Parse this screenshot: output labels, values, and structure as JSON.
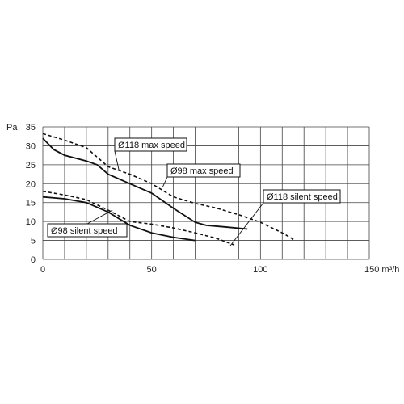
{
  "chart_data": {
    "type": "line",
    "title": "",
    "xlabel": "m³/h",
    "ylabel": "Pa",
    "xlim": [
      0,
      150
    ],
    "ylim": [
      0,
      35
    ],
    "x_ticks": [
      0,
      50,
      100,
      150
    ],
    "x_tick_labels": [
      "0",
      "50",
      "100",
      "150 m³/h"
    ],
    "y_ticks": [
      0,
      5,
      10,
      15,
      20,
      25,
      30,
      35
    ],
    "y_tick_labels": [
      "0",
      "5",
      "10",
      "15",
      "20",
      "25",
      "30",
      "35"
    ],
    "x_minor_step": 10,
    "grid": true,
    "legend": "callouts",
    "series": [
      {
        "name": "Ø118 max speed",
        "style": "dashed",
        "points": [
          [
            0,
            33.2
          ],
          [
            10,
            31.5
          ],
          [
            20,
            29.5
          ],
          [
            30,
            24.5
          ],
          [
            40,
            22.5
          ],
          [
            50,
            20
          ],
          [
            60,
            16.5
          ],
          [
            70,
            14.8
          ],
          [
            80,
            13.5
          ],
          [
            90,
            11.8
          ],
          [
            100,
            9.8
          ],
          [
            110,
            7
          ],
          [
            116,
            5
          ]
        ]
      },
      {
        "name": "Ø98 max speed",
        "style": "solid",
        "points": [
          [
            0,
            32
          ],
          [
            5,
            29
          ],
          [
            10,
            27.5
          ],
          [
            20,
            26
          ],
          [
            25,
            25
          ],
          [
            30,
            22.5
          ],
          [
            40,
            20
          ],
          [
            50,
            17.5
          ],
          [
            60,
            13.5
          ],
          [
            70,
            9.8
          ],
          [
            75,
            9
          ],
          [
            85,
            8.5
          ],
          [
            94,
            8
          ]
        ]
      },
      {
        "name": "Ø118 silent speed",
        "style": "dashed",
        "points": [
          [
            0,
            18
          ],
          [
            10,
            17
          ],
          [
            20,
            15.8
          ],
          [
            30,
            13
          ],
          [
            40,
            10
          ],
          [
            50,
            9.3
          ],
          [
            60,
            8.3
          ],
          [
            70,
            7
          ],
          [
            80,
            5.5
          ],
          [
            88,
            3.8
          ]
        ]
      },
      {
        "name": "Ø98 silent speed",
        "style": "solid",
        "points": [
          [
            0,
            16.5
          ],
          [
            10,
            16
          ],
          [
            20,
            15
          ],
          [
            30,
            12.5
          ],
          [
            40,
            9
          ],
          [
            50,
            7
          ],
          [
            60,
            5.8
          ],
          [
            70,
            5
          ]
        ]
      }
    ],
    "annotations": [
      {
        "text": "Ø118 max speed",
        "target_series": 0
      },
      {
        "text": "Ø98 max speed",
        "target_series": 1
      },
      {
        "text": "Ø118 silent speed",
        "target_series": 2
      },
      {
        "text": "Ø98 silent speed",
        "target_series": 3
      }
    ]
  }
}
